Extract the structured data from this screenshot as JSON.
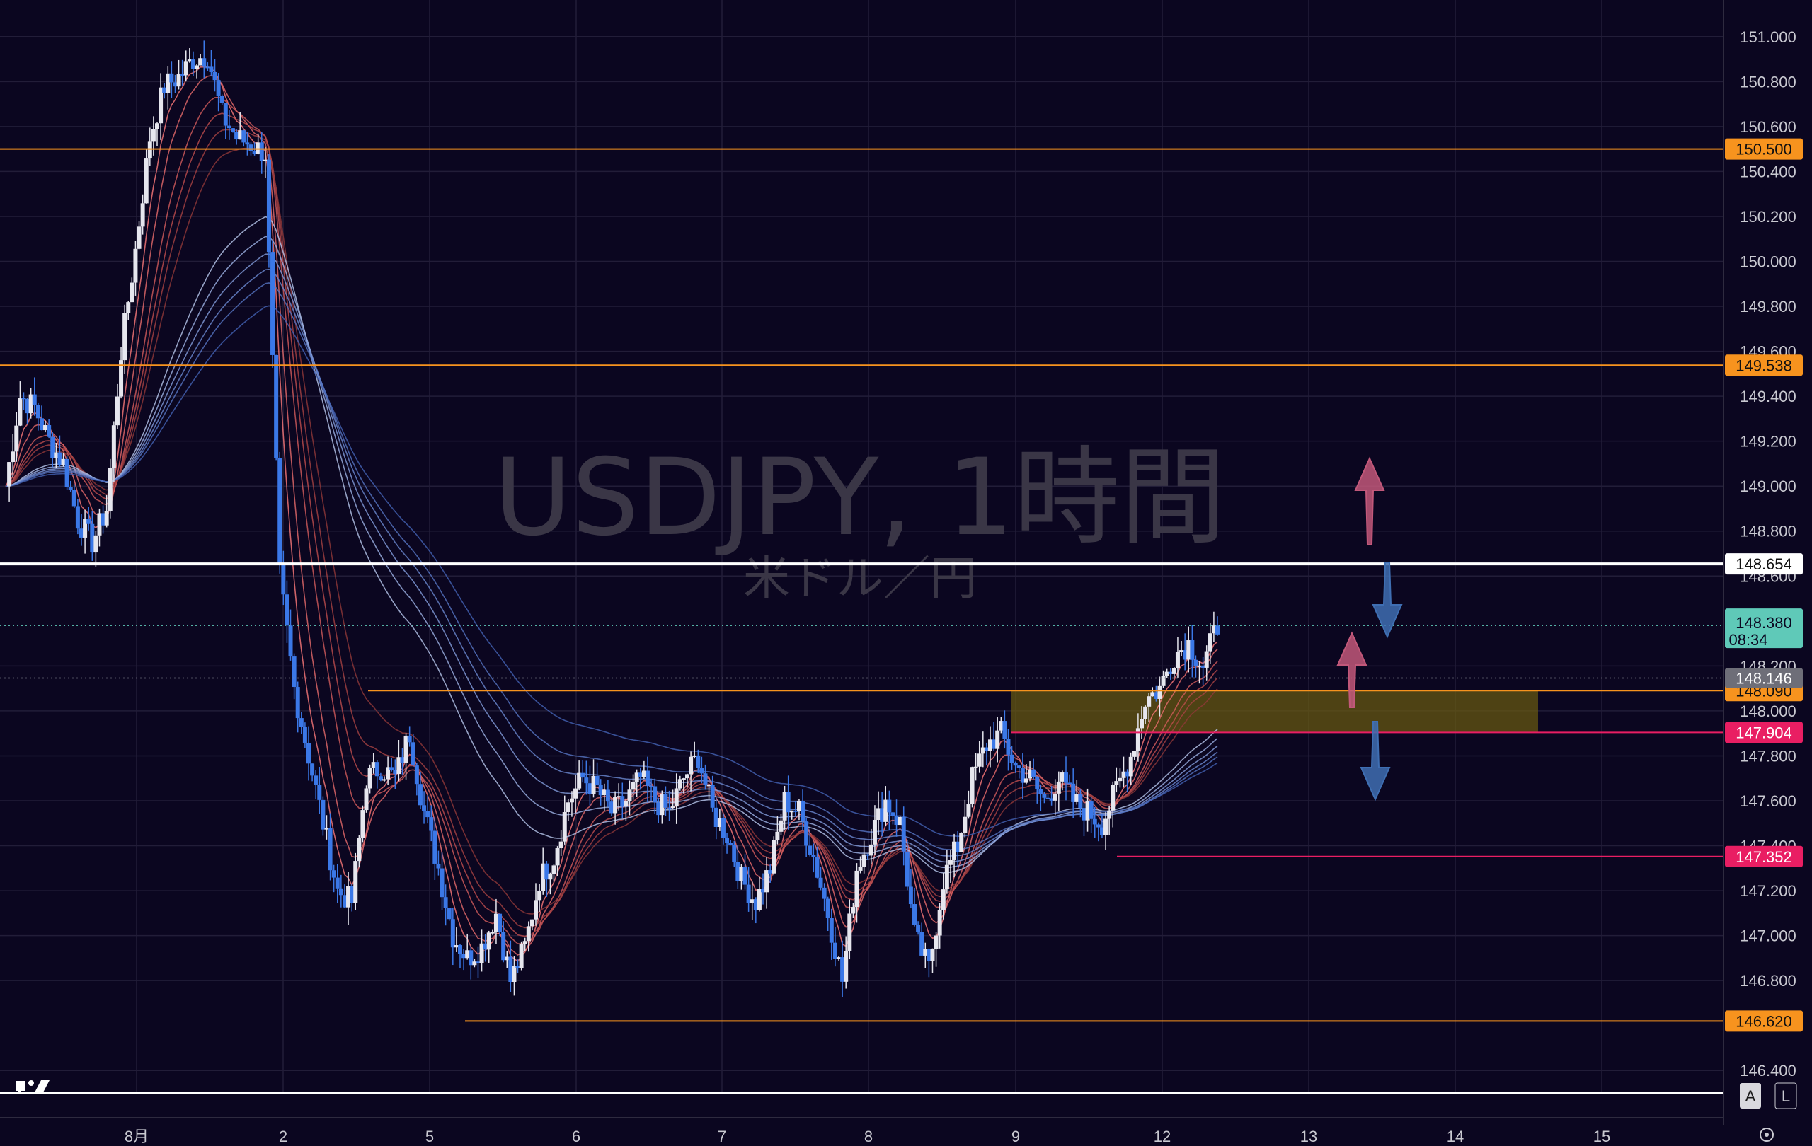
{
  "chart_data": {
    "type": "candlestick",
    "symbol": "USDJPY, 1時間",
    "subtitle": "米ドル／円",
    "y_axis": {
      "ylim": [
        146.3,
        151.1
      ],
      "ticks": [
        "151.000",
        "150.800",
        "150.600",
        "150.400",
        "150.200",
        "150.000",
        "149.800",
        "149.600",
        "149.400",
        "149.200",
        "149.000",
        "148.800",
        "148.600",
        "148.200",
        "148.000",
        "147.800",
        "147.600",
        "147.400",
        "147.200",
        "147.000",
        "146.800",
        "146.400"
      ]
    },
    "x_axis": {
      "date_labels": [
        "8月",
        "2",
        "5",
        "6",
        "7",
        "8",
        "9",
        "12",
        "13",
        "14",
        "15"
      ]
    },
    "horizontal_lines": [
      {
        "value": 150.5,
        "label": "150.500",
        "color": "#f7931e"
      },
      {
        "value": 149.538,
        "label": "149.538",
        "color": "#f7931e"
      },
      {
        "value": 148.654,
        "label": "148.654",
        "color": "#ffffff"
      },
      {
        "value": 148.09,
        "label": "148.090",
        "color": "#f7931e"
      },
      {
        "value": 147.904,
        "label": "147.904",
        "color": "#e91e63"
      },
      {
        "value": 147.352,
        "label": "147.352",
        "color": "#e91e63"
      },
      {
        "value": 146.62,
        "label": "146.620",
        "color": "#f7931e"
      }
    ],
    "current_price": {
      "value": 148.38,
      "label": "148.380",
      "countdown": "08:34",
      "color": "#5fc9b8"
    },
    "gray_price": {
      "value": 148.146,
      "label": "148.146"
    },
    "zone": {
      "from": 147.904,
      "to": 148.09
    },
    "close_path": [
      149.0,
      149.4,
      149.35,
      149.2,
      149.1,
      148.85,
      148.75,
      148.9,
      149.6,
      150.05,
      150.55,
      150.78,
      150.82,
      150.9,
      150.92,
      150.65,
      150.55,
      150.52,
      150.48,
      148.6,
      148.1,
      147.8,
      147.5,
      147.2,
      147.15,
      147.7,
      147.75,
      147.7,
      147.9,
      147.55,
      147.3,
      147.0,
      146.9,
      146.95,
      147.1,
      146.8,
      146.95,
      147.25,
      147.35,
      147.6,
      147.7,
      147.65,
      147.55,
      147.6,
      147.7,
      147.6,
      147.55,
      147.7,
      147.8,
      147.55,
      147.45,
      147.25,
      147.15,
      147.3,
      147.6,
      147.55,
      147.35,
      147.1,
      146.8,
      147.3,
      147.45,
      147.6,
      147.5,
      147.0,
      146.85,
      147.25,
      147.4,
      147.7,
      147.85,
      147.9,
      147.75,
      147.7,
      147.6,
      147.7,
      147.6,
      147.55,
      147.5,
      147.65,
      147.8,
      148.05,
      148.1,
      148.25,
      148.3,
      148.2,
      148.38
    ],
    "arrows": [
      {
        "direction": "up",
        "color": "#c2587a"
      },
      {
        "direction": "down",
        "color": "#3f6fb3"
      },
      {
        "direction": "up",
        "color": "#c2587a"
      },
      {
        "direction": "down",
        "color": "#3f6fb3"
      }
    ],
    "scale_buttons": [
      "A",
      "L"
    ],
    "logo": "17"
  }
}
